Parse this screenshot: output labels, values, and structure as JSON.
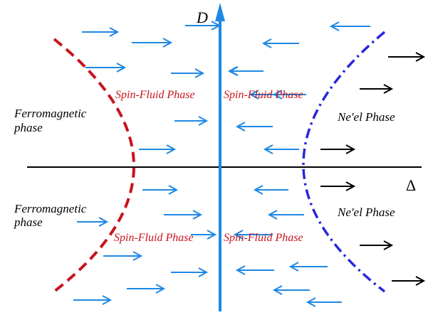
{
  "colors": {
    "axis": "#000000",
    "vertical_axis": "#1e88e5",
    "arrow_blue": "#1e88e5",
    "arrow_black": "#000000",
    "ferro_boundary": "#c8141e",
    "neel_boundary": "#2828dc",
    "spin_fluid_text": "#c8141e",
    "text": "#000000"
  },
  "axes": {
    "x_label": "Δ",
    "y_label": "D"
  },
  "labels": {
    "ferro_top_line1": "Ferromagnetic",
    "ferro_top_line2": "phase",
    "ferro_bottom_line1": "Ferromagnetic",
    "ferro_bottom_line2": "phase",
    "spin_fluid_top_left": "Spin-Fluid Phase",
    "spin_fluid_top_right": "Spin-Fluid Phase",
    "spin_fluid_bottom_left": "Spin-Fluid Phase",
    "spin_fluid_bottom_right": "Spin-Fluid Phase",
    "neel_top": "Ne'el Phase",
    "neel_bottom": "Ne'el Phase"
  },
  "boundaries": [
    {
      "name": "ferromagnetic-boundary",
      "style": "dashed",
      "color_key": "ferro_boundary"
    },
    {
      "name": "neel-boundary",
      "style": "dash-dot",
      "color_key": "neel_boundary"
    }
  ],
  "flow_arrows": {
    "left_region": {
      "direction": "right",
      "color_key": "arrow_blue",
      "count": 15
    },
    "center_right_region": {
      "direction": "left",
      "color_key": "arrow_blue",
      "count": 15
    },
    "far_right_region": {
      "direction": "right",
      "color_key": "arrow_black",
      "count": 6
    }
  }
}
